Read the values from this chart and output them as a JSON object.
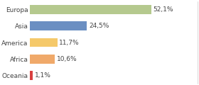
{
  "categories": [
    "Europa",
    "Asia",
    "America",
    "Africa",
    "Oceania"
  ],
  "values": [
    52.1,
    24.5,
    11.7,
    10.6,
    1.1
  ],
  "labels": [
    "52,1%",
    "24,5%",
    "11,7%",
    "10,6%",
    "1,1%"
  ],
  "bar_colors": [
    "#b5c98e",
    "#6b8fc2",
    "#f5c96a",
    "#f0a96a",
    "#d94040"
  ],
  "background_color": "#ffffff",
  "label_fontsize": 6.5,
  "category_fontsize": 6.5,
  "xlim": [
    0,
    72
  ],
  "bar_height": 0.55
}
